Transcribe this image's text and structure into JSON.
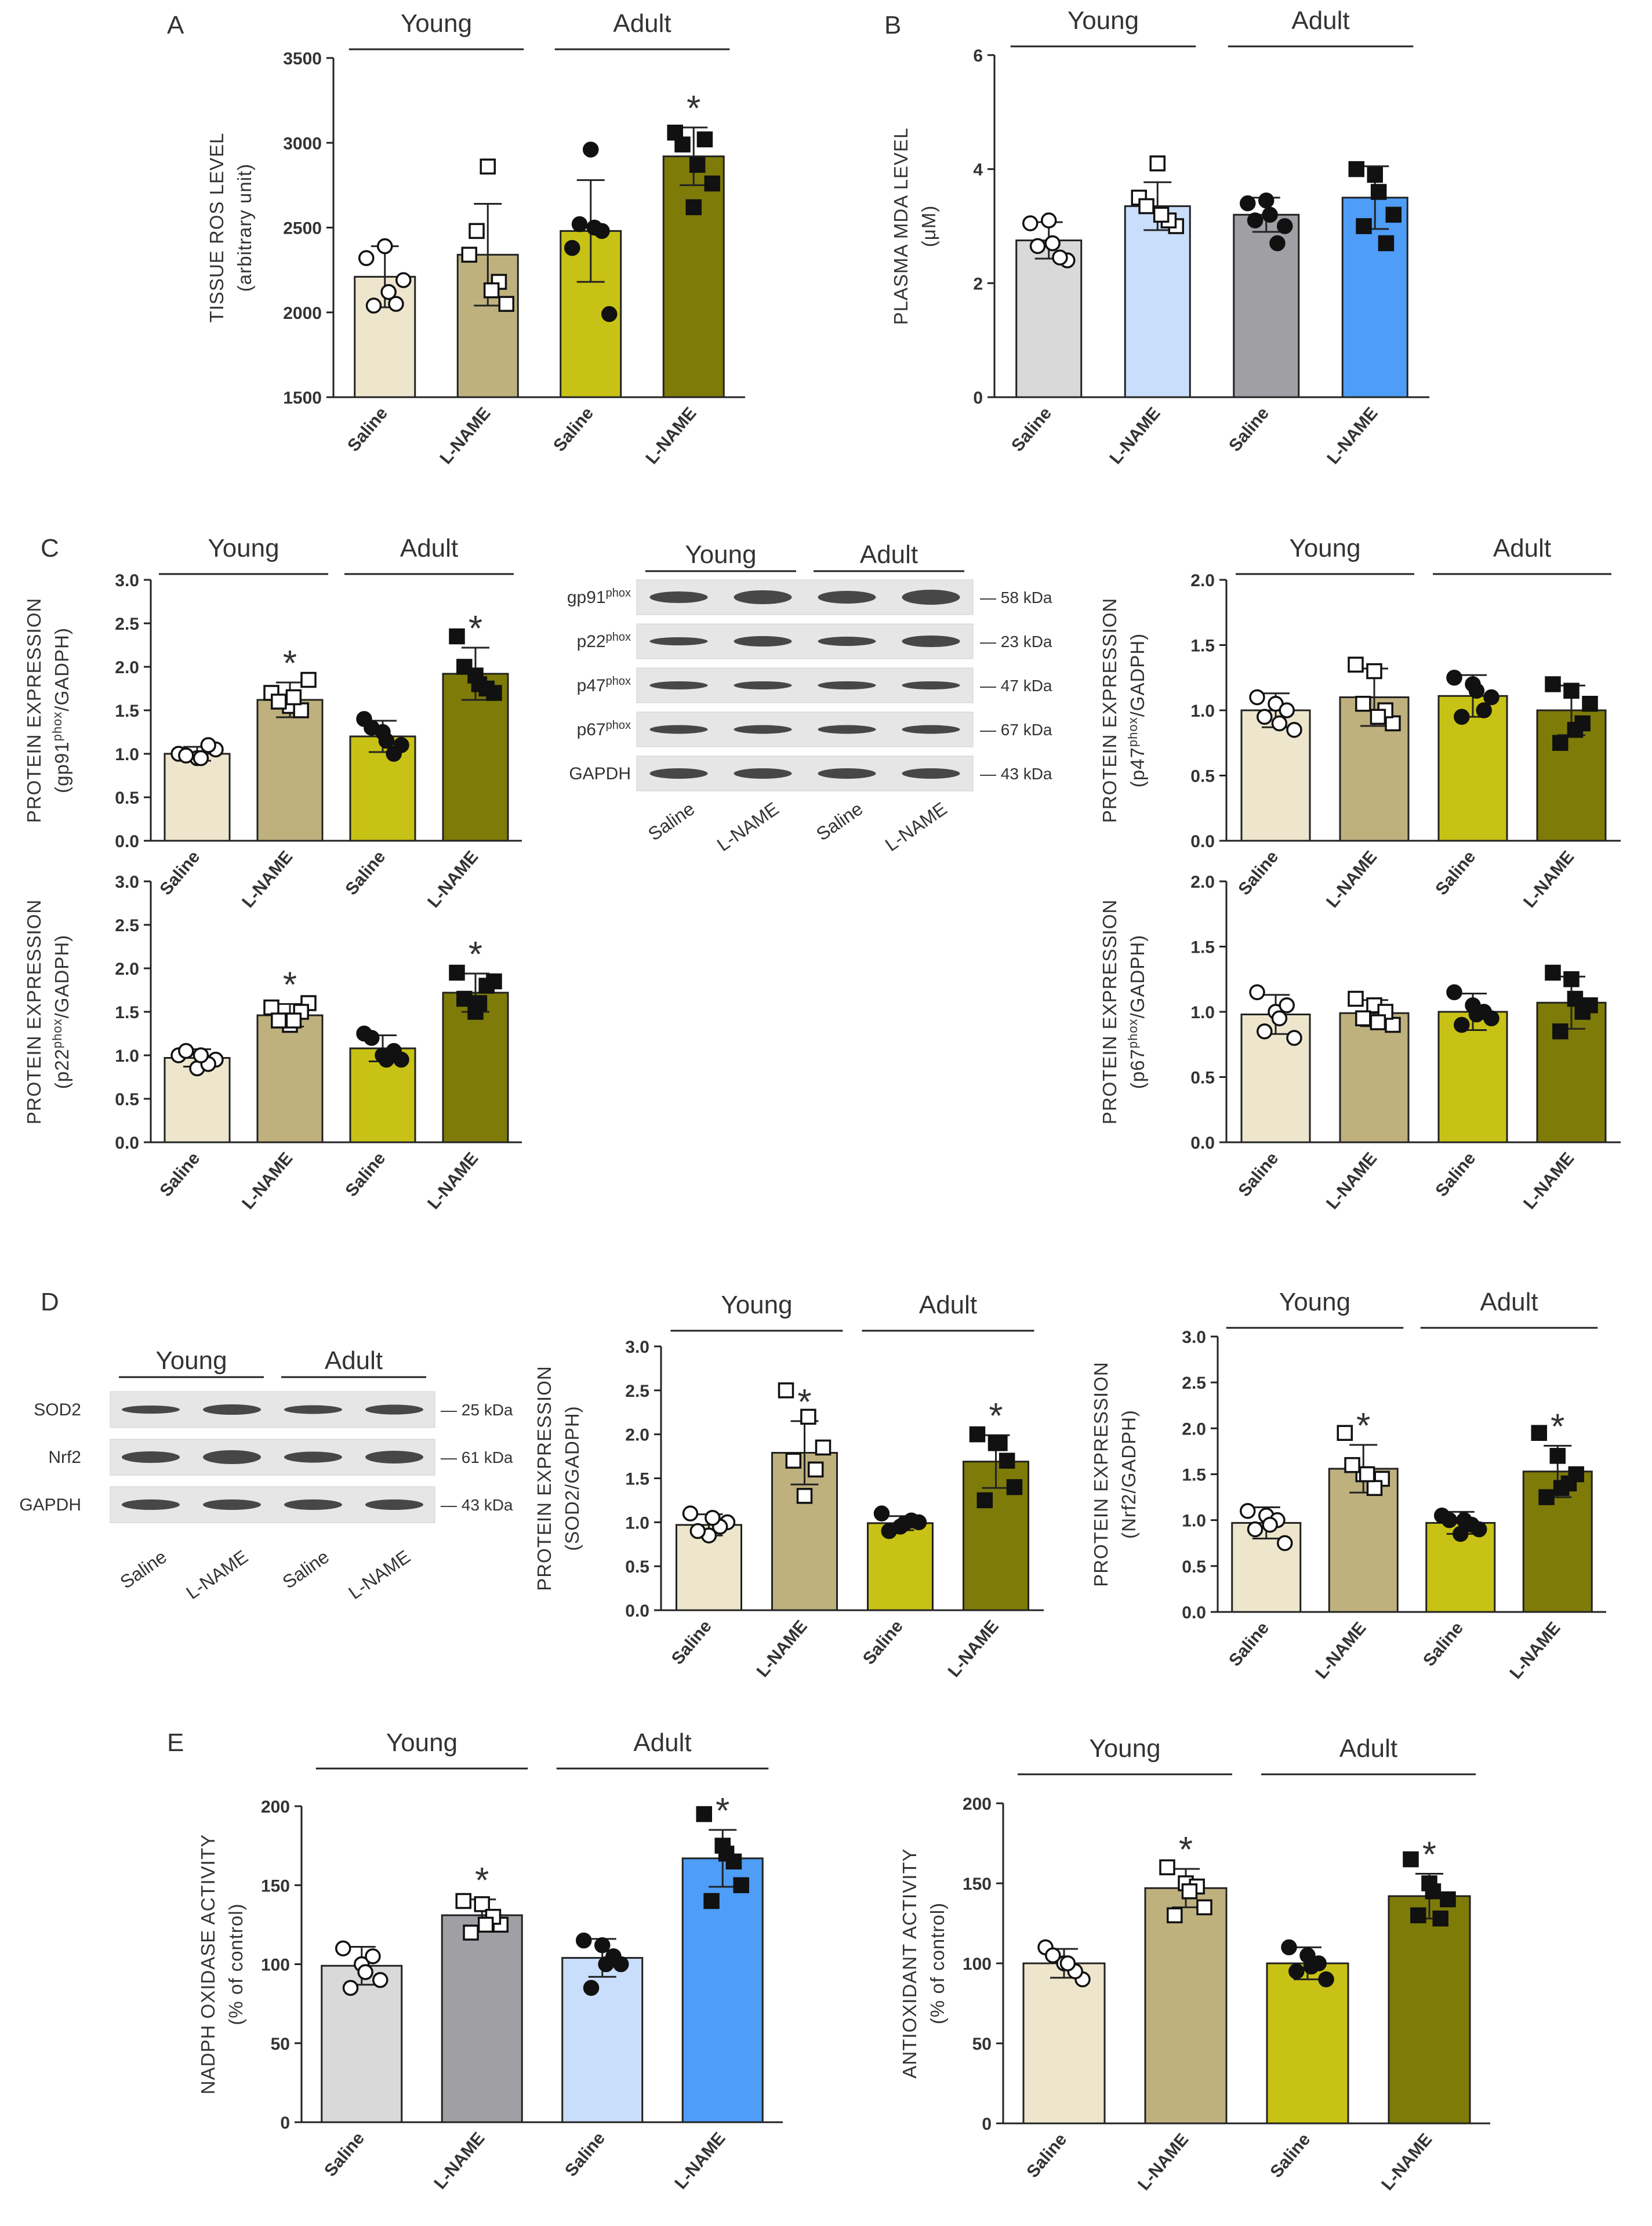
{
  "colors": {
    "young_saline": "#ede6cc",
    "young_lname": "#bfb17e",
    "adult_saline": "#c8c216",
    "adult_lname": "#7e7b09",
    "blue1": "#d9d9d9",
    "blue2": "#c9defa",
    "blue3": "#a0a0a4",
    "blue4": "#4e9df7"
  },
  "group_labels": {
    "young": "Young",
    "adult": "Adult"
  },
  "panel_letters": [
    "A",
    "B",
    "C",
    "D",
    "E"
  ],
  "chart_data": [
    {
      "id": "A",
      "type": "bar",
      "panel": "A",
      "ylabel": "TISSUE ROS LEVEL",
      "ylabel2": "(arbitrary unit)",
      "ylim": [
        1500,
        3500
      ],
      "yticks": [
        "1500",
        "2000",
        "2500",
        "3000",
        "3500"
      ],
      "categories": [
        "Saline",
        "L-NAME",
        "Saline",
        "L-NAME"
      ],
      "values": [
        2210,
        2340,
        2480,
        2920
      ],
      "errors": [
        180,
        300,
        300,
        170
      ],
      "significant": [
        false,
        false,
        false,
        true
      ],
      "points": [
        [
          2320,
          2390,
          2190,
          2040,
          2050,
          2120
        ],
        [
          2340,
          2860,
          2050,
          2480,
          2180,
          2130
        ],
        [
          2380,
          2960,
          1990,
          2520,
          2480,
          2500
        ],
        [
          3060,
          2620,
          2760,
          2990,
          3020,
          2870
        ]
      ],
      "markers": [
        "circle_open",
        "square_open",
        "circle_filled",
        "square_filled"
      ],
      "fills": [
        "#ede6cc",
        "#bfb17e",
        "#c8c216",
        "#7e7b09"
      ]
    },
    {
      "id": "B",
      "type": "bar",
      "panel": "B",
      "ylabel": "PLASMA MDA LEVEL",
      "ylabel2": "(μM)",
      "ylim": [
        0,
        6
      ],
      "yticks": [
        "0",
        "2",
        "4",
        "6"
      ],
      "categories": [
        "Saline",
        "L-NAME",
        "Saline",
        "L-NAME"
      ],
      "values": [
        2.75,
        3.35,
        3.2,
        3.5
      ],
      "errors": [
        0.32,
        0.42,
        0.3,
        0.55
      ],
      "significant": [
        false,
        false,
        false,
        false
      ],
      "points": [
        [
          3.05,
          3.1,
          2.4,
          2.65,
          2.45,
          2.7
        ],
        [
          3.5,
          4.1,
          3.0,
          3.35,
          3.1,
          3.2
        ],
        [
          3.4,
          3.45,
          3.0,
          3.1,
          2.7,
          3.2
        ],
        [
          4.0,
          3.9,
          3.2,
          3.0,
          2.7,
          3.6
        ]
      ],
      "markers": [
        "circle_open",
        "square_open",
        "circle_filled",
        "square_filled"
      ],
      "fills": [
        "#d9d9d9",
        "#c9defa",
        "#a0a0a4",
        "#4e9df7"
      ]
    },
    {
      "id": "C1",
      "type": "bar",
      "panel": "C",
      "ylabel": "PROTEIN EXPRESSION",
      "ylabel2_pre": "(gp91",
      "ylabel2_sup": "phox",
      "ylabel2_post": "/GADPH)",
      "ylim": [
        0,
        3
      ],
      "yticks": [
        "0.0",
        "0.5",
        "1.0",
        "1.5",
        "2.0",
        "2.5",
        "3.0"
      ],
      "categories": [
        "Saline",
        "L-NAME",
        "Saline",
        "L-NAME"
      ],
      "values": [
        1.0,
        1.62,
        1.2,
        1.92
      ],
      "errors": [
        0.08,
        0.2,
        0.18,
        0.3
      ],
      "significant": [
        false,
        true,
        false,
        true
      ],
      "points": [
        [
          1.0,
          0.95,
          1.05,
          0.98,
          1.1,
          0.95
        ],
        [
          1.7,
          1.55,
          1.85,
          1.6,
          1.5,
          1.65
        ],
        [
          1.4,
          1.25,
          1.1,
          1.3,
          1.0,
          1.15
        ],
        [
          2.35,
          1.9,
          1.7,
          2.0,
          1.75,
          1.8
        ]
      ],
      "markers": [
        "circle_open",
        "square_open",
        "circle_filled",
        "square_filled"
      ],
      "fills": [
        "#ede6cc",
        "#bfb17e",
        "#c8c216",
        "#7e7b09"
      ]
    },
    {
      "id": "C2",
      "type": "bar",
      "panel": "C",
      "ylabel": "PROTEIN EXPRESSION",
      "ylabel2_pre": "(p22",
      "ylabel2_sup": "phox",
      "ylabel2_post": "/GADPH)",
      "ylim": [
        0,
        3
      ],
      "yticks": [
        "0.0",
        "0.5",
        "1.0",
        "1.5",
        "2.0",
        "2.5",
        "3.0"
      ],
      "categories": [
        "Saline",
        "L-NAME",
        "Saline",
        "L-NAME"
      ],
      "values": [
        0.97,
        1.46,
        1.08,
        1.72
      ],
      "errors": [
        0.1,
        0.13,
        0.15,
        0.22
      ],
      "significant": [
        false,
        true,
        false,
        true
      ],
      "points": [
        [
          1.0,
          0.85,
          0.95,
          1.05,
          0.9,
          1.0
        ],
        [
          1.55,
          1.35,
          1.6,
          1.4,
          1.5,
          1.4
        ],
        [
          1.25,
          1.0,
          0.95,
          1.2,
          1.05,
          0.95
        ],
        [
          1.95,
          1.5,
          1.85,
          1.65,
          1.8,
          1.6
        ]
      ],
      "markers": [
        "circle_open",
        "square_open",
        "circle_filled",
        "square_filled"
      ],
      "fills": [
        "#ede6cc",
        "#bfb17e",
        "#c8c216",
        "#7e7b09"
      ]
    },
    {
      "id": "C3",
      "type": "bar",
      "panel": "C",
      "ylabel": "PROTEIN EXPRESSION",
      "ylabel2_pre": "(p47",
      "ylabel2_sup": "phox",
      "ylabel2_post": "/GADPH)",
      "ylim": [
        0,
        2
      ],
      "yticks": [
        "0.0",
        "0.5",
        "1.0",
        "1.5",
        "2.0"
      ],
      "categories": [
        "Saline",
        "L-NAME",
        "Saline",
        "L-NAME"
      ],
      "values": [
        1.0,
        1.1,
        1.11,
        1.0
      ],
      "errors": [
        0.13,
        0.22,
        0.16,
        0.19
      ],
      "significant": [
        false,
        false,
        false,
        false
      ],
      "points": [
        [
          1.1,
          1.05,
          0.85,
          0.95,
          1.0,
          0.9
        ],
        [
          1.35,
          1.3,
          0.9,
          1.05,
          1.0,
          0.95
        ],
        [
          1.25,
          1.2,
          1.1,
          0.95,
          1.0,
          1.15
        ],
        [
          1.2,
          1.15,
          1.05,
          0.75,
          0.9,
          0.85
        ]
      ],
      "markers": [
        "circle_open",
        "square_open",
        "circle_filled",
        "square_filled"
      ],
      "fills": [
        "#ede6cc",
        "#bfb17e",
        "#c8c216",
        "#7e7b09"
      ]
    },
    {
      "id": "C4",
      "type": "bar",
      "panel": "C",
      "ylabel": "PROTEIN EXPRESSION",
      "ylabel2_pre": "(p67",
      "ylabel2_sup": "phox",
      "ylabel2_post": "/GADPH)",
      "ylim": [
        0,
        2
      ],
      "yticks": [
        "0.0",
        "0.5",
        "1.0",
        "1.5",
        "2.0"
      ],
      "categories": [
        "Saline",
        "L-NAME",
        "Saline",
        "L-NAME"
      ],
      "values": [
        0.98,
        0.99,
        1.0,
        1.07
      ],
      "errors": [
        0.15,
        0.1,
        0.14,
        0.2
      ],
      "significant": [
        false,
        false,
        false,
        false
      ],
      "points": [
        [
          1.15,
          1.0,
          0.8,
          0.85,
          1.05,
          0.95
        ],
        [
          1.1,
          1.05,
          0.9,
          0.95,
          1.0,
          0.92
        ],
        [
          1.15,
          1.05,
          0.95,
          0.9,
          1.0,
          0.98
        ],
        [
          1.3,
          1.25,
          1.05,
          0.85,
          1.0,
          1.1
        ]
      ],
      "markers": [
        "circle_open",
        "square_open",
        "circle_filled",
        "square_filled"
      ],
      "fills": [
        "#ede6cc",
        "#bfb17e",
        "#c8c216",
        "#7e7b09"
      ]
    },
    {
      "id": "D1",
      "type": "bar",
      "panel": "D",
      "ylabel": "PROTEIN EXPRESSION",
      "ylabel2": "(SOD2/GADPH)",
      "ylim": [
        0,
        3
      ],
      "yticks": [
        "0.0",
        "0.5",
        "1.0",
        "1.5",
        "2.0",
        "2.5",
        "3.0"
      ],
      "categories": [
        "Saline",
        "L-NAME",
        "Saline",
        "L-NAME"
      ],
      "values": [
        0.97,
        1.79,
        0.99,
        1.69
      ],
      "errors": [
        0.12,
        0.36,
        0.08,
        0.3
      ],
      "significant": [
        false,
        true,
        false,
        true
      ],
      "points": [
        [
          1.1,
          0.85,
          1.0,
          0.9,
          0.95,
          1.05
        ],
        [
          2.5,
          1.3,
          1.85,
          1.7,
          1.6,
          2.2
        ],
        [
          1.1,
          0.95,
          1.0,
          0.9,
          1.02,
          0.98
        ],
        [
          2.0,
          1.9,
          1.4,
          1.25,
          1.7,
          1.9
        ]
      ],
      "markers": [
        "circle_open",
        "square_open",
        "circle_filled",
        "square_filled"
      ],
      "fills": [
        "#ede6cc",
        "#bfb17e",
        "#c8c216",
        "#7e7b09"
      ]
    },
    {
      "id": "D2",
      "type": "bar",
      "panel": "D",
      "ylabel": "PROTEIN EXPRESSION",
      "ylabel2": "(Nrf2/GADPH)",
      "ylim": [
        0,
        3
      ],
      "yticks": [
        "0.0",
        "0.5",
        "1.0",
        "1.5",
        "2.0",
        "2.5",
        "3.0"
      ],
      "categories": [
        "Saline",
        "L-NAME",
        "Saline",
        "L-NAME"
      ],
      "values": [
        0.97,
        1.56,
        0.97,
        1.53
      ],
      "errors": [
        0.17,
        0.26,
        0.12,
        0.28
      ],
      "significant": [
        false,
        true,
        false,
        true
      ],
      "points": [
        [
          1.1,
          1.05,
          0.75,
          0.9,
          1.0,
          0.95
        ],
        [
          1.95,
          1.5,
          1.45,
          1.6,
          1.35,
          1.5
        ],
        [
          1.05,
          0.85,
          0.9,
          1.0,
          0.95,
          1.0
        ],
        [
          1.95,
          1.7,
          1.5,
          1.25,
          1.4,
          1.35
        ]
      ],
      "markers": [
        "circle_open",
        "square_open",
        "circle_filled",
        "square_filled"
      ],
      "fills": [
        "#ede6cc",
        "#bfb17e",
        "#c8c216",
        "#7e7b09"
      ]
    },
    {
      "id": "E1",
      "type": "bar",
      "panel": "E",
      "ylabel": "NADPH OXIDASE  ACTIVITY",
      "ylabel2": "(% of control)",
      "ylim": [
        0,
        200
      ],
      "yticks": [
        "0",
        "50",
        "100",
        "150",
        "200"
      ],
      "categories": [
        "Saline",
        "L-NAME",
        "Saline",
        "L-NAME"
      ],
      "values": [
        99,
        131,
        104,
        167
      ],
      "errors": [
        12,
        10,
        12,
        18
      ],
      "significant": [
        false,
        true,
        false,
        true
      ],
      "points": [
        [
          110,
          100,
          90,
          85,
          105,
          95
        ],
        [
          140,
          138,
          125,
          120,
          130,
          125
        ],
        [
          115,
          112,
          100,
          85,
          105,
          100
        ],
        [
          195,
          175,
          150,
          140,
          165,
          170
        ]
      ],
      "markers": [
        "circle_open",
        "square_open",
        "circle_filled",
        "square_filled"
      ],
      "fills": [
        "#d9d9d9",
        "#a0a0a4",
        "#c9defa",
        "#4e9df7"
      ]
    },
    {
      "id": "E2",
      "type": "bar",
      "panel": "E",
      "ylabel": "ANTIOXIDANT ACTIVITY",
      "ylabel2": "(% of control)",
      "ylim": [
        0,
        200
      ],
      "yticks": [
        "0",
        "50",
        "100",
        "150",
        "200"
      ],
      "categories": [
        "Saline",
        "L-NAME",
        "Saline",
        "L-NAME"
      ],
      "values": [
        100,
        147,
        100,
        142
      ],
      "errors": [
        9,
        12,
        10,
        14
      ],
      "significant": [
        false,
        true,
        false,
        true
      ],
      "points": [
        [
          110,
          100,
          90,
          105,
          95,
          100
        ],
        [
          160,
          150,
          135,
          130,
          148,
          145
        ],
        [
          110,
          105,
          90,
          95,
          100,
          98
        ],
        [
          165,
          150,
          140,
          130,
          128,
          145
        ]
      ],
      "markers": [
        "circle_open",
        "square_open",
        "circle_filled",
        "square_filled"
      ],
      "fills": [
        "#ede6cc",
        "#bfb17e",
        "#c8c216",
        "#7e7b09"
      ]
    }
  ],
  "blots": [
    {
      "id": "blotC",
      "bands": [
        {
          "label_pre": "gp91",
          "label_sup": "phox",
          "kda": "— 58 kDa"
        },
        {
          "label_pre": "p22",
          "label_sup": "phox",
          "kda": "— 23 kDa"
        },
        {
          "label_pre": "p47",
          "label_sup": "phox",
          "kda": "— 47 kDa"
        },
        {
          "label_pre": "p67",
          "label_sup": "phox",
          "kda": "— 67 kDa"
        },
        {
          "label_pre": "GAPDH",
          "label_sup": "",
          "kda": "— 43 kDa"
        }
      ],
      "lanes": [
        "Saline",
        "L-NAME",
        "Saline",
        "L-NAME"
      ]
    },
    {
      "id": "blotD",
      "bands": [
        {
          "label_pre": "SOD2",
          "label_sup": "",
          "kda": "— 25 kDa"
        },
        {
          "label_pre": "Nrf2",
          "label_sup": "",
          "kda": "— 61 kDa"
        },
        {
          "label_pre": "GAPDH",
          "label_sup": "",
          "kda": "— 43 kDa"
        }
      ],
      "lanes": [
        "Saline",
        "L-NAME",
        "Saline",
        "L-NAME"
      ]
    }
  ],
  "significance_marker": "*"
}
